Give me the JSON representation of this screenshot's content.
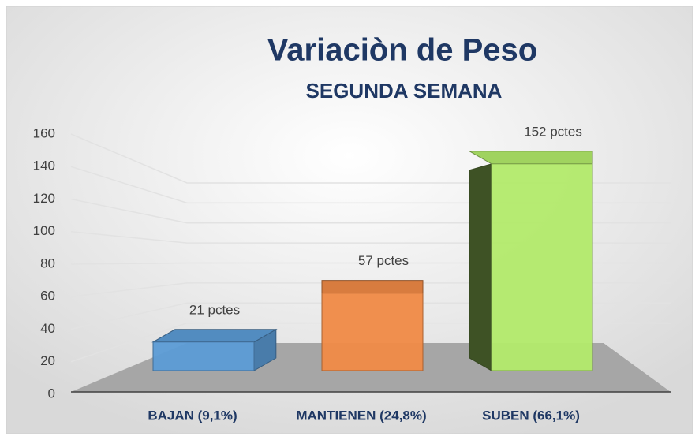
{
  "chart_data": {
    "type": "bar3d",
    "title": "Variaciòn de Peso",
    "subtitle": "SEGUNDA SEMANA",
    "categories": [
      "BAJAN (9,1%)",
      "MANTIENEN (24,8%)",
      "SUBEN (66,1%)"
    ],
    "values": [
      21,
      57,
      152
    ],
    "value_labels": [
      "21 pctes",
      "57 pctes",
      "152 pctes"
    ],
    "colors": [
      "#5b9bd5",
      "#f08a46",
      "#b2ea6a"
    ],
    "ylim": [
      0,
      160
    ],
    "yticks": [
      0,
      20,
      40,
      60,
      80,
      100,
      120,
      140,
      160
    ],
    "grid": true
  }
}
